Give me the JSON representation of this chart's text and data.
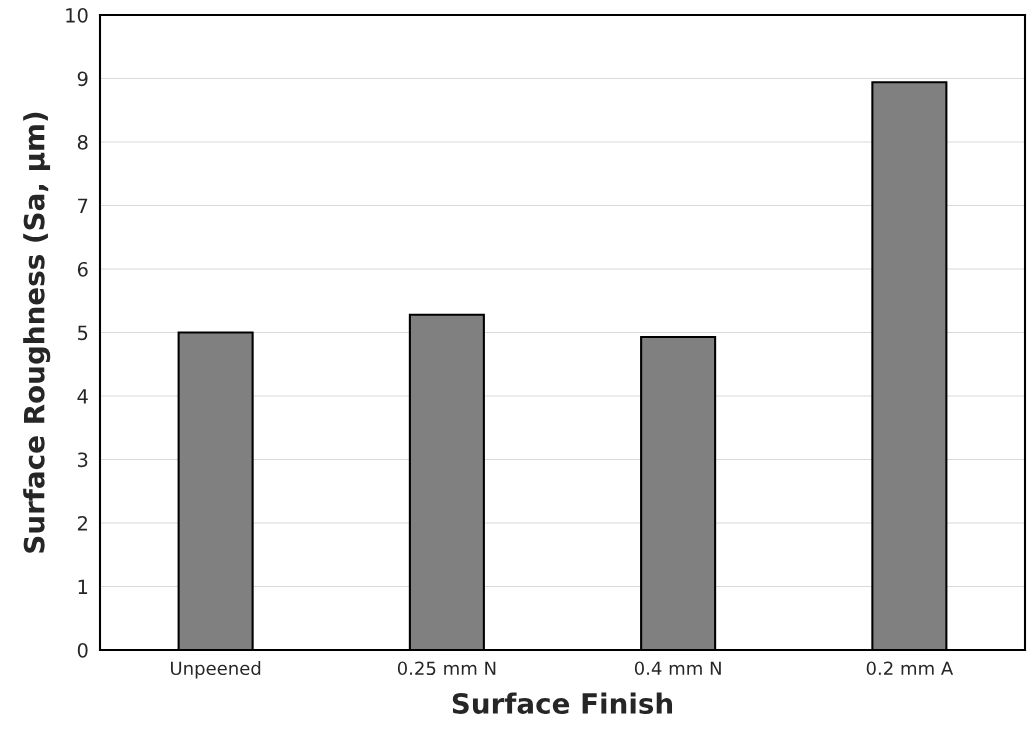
{
  "chart_data": {
    "type": "bar",
    "xlabel": "Surface Finish",
    "ylabel": "Surface Roughness (Sa, µm)",
    "categories": [
      "Unpeened",
      "0.25 mm N",
      "0.4 mm N",
      "0.2 mm A"
    ],
    "values": [
      5.0,
      5.28,
      4.93,
      8.94
    ],
    "color": "#808080",
    "ylim": [
      0,
      10
    ],
    "yticks": [
      0,
      1,
      2,
      3,
      4,
      5,
      6,
      7,
      8,
      9,
      10
    ],
    "grid": "y"
  }
}
